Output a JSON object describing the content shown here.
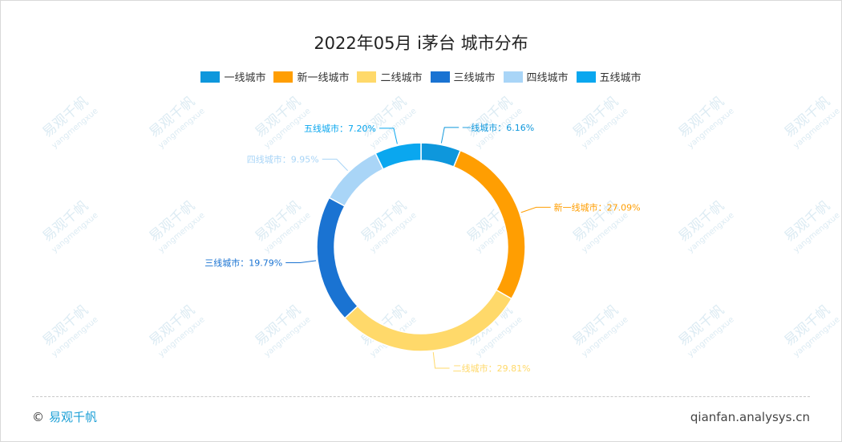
{
  "chart_data": {
    "type": "pie",
    "title": "2022年05月 i茅台 城市分布",
    "categories": [
      "一线城市",
      "新一线城市",
      "二线城市",
      "三线城市",
      "四线城市",
      "五线城市"
    ],
    "values": [
      6.16,
      27.09,
      29.81,
      19.79,
      9.95,
      7.2
    ],
    "labels": [
      "一线城市：6.16%",
      "新一线城市：27.09%",
      "二线城市：29.81%",
      "三线城市：19.79%",
      "四线城市：9.95%",
      "五线城市：7.20%"
    ],
    "colors": [
      "#0e97dc",
      "#ff9e02",
      "#ffd96a",
      "#1a73d2",
      "#a9d5f7",
      "#0aa7ef"
    ],
    "legend_position": "top"
  },
  "watermark": {
    "brand": "易观千帆",
    "pinyin": "yangmengxue"
  },
  "footer": {
    "copyright": "©",
    "brand": "易观千帆",
    "site": "qianfan.analysys.cn"
  }
}
